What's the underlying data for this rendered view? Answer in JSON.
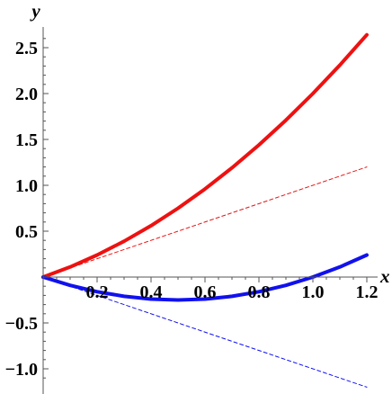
{
  "chart_data": {
    "type": "line",
    "xlabel": "x",
    "ylabel": "y",
    "xlim": [
      0,
      1.2
    ],
    "ylim": [
      -1.2,
      2.7
    ],
    "x_ticks": [
      "0.2",
      "0.4",
      "0.6",
      "0.8",
      "1.0",
      "1.2"
    ],
    "y_ticks": [
      "2.5",
      "2.0",
      "1.5",
      "1.0",
      "0.5",
      "−0.5",
      "−1.0"
    ],
    "x_tick_values": [
      0.2,
      0.4,
      0.6,
      0.8,
      1.0,
      1.2
    ],
    "y_tick_values": [
      2.5,
      2.0,
      1.5,
      1.0,
      0.5,
      -0.5,
      -1.0
    ],
    "grid": false,
    "series": [
      {
        "color": "#ee1111",
        "style": "solid",
        "x": [
          0,
          0.1,
          0.2,
          0.3,
          0.4,
          0.5,
          0.6,
          0.7,
          0.8,
          0.9,
          1.0,
          1.1,
          1.2
        ],
        "y": [
          0,
          0.11,
          0.24,
          0.39,
          0.56,
          0.75,
          0.96,
          1.19,
          1.44,
          1.71,
          2.0,
          2.31,
          2.64
        ]
      },
      {
        "color": "#ee1111",
        "style": "dashed",
        "x": [
          0,
          1.2
        ],
        "y": [
          0,
          1.2
        ]
      },
      {
        "color": "#1111ee",
        "style": "solid",
        "x": [
          0,
          0.1,
          0.2,
          0.3,
          0.4,
          0.5,
          0.6,
          0.7,
          0.8,
          0.9,
          1.0,
          1.1,
          1.2
        ],
        "y": [
          0,
          -0.09,
          -0.16,
          -0.21,
          -0.24,
          -0.25,
          -0.24,
          -0.21,
          -0.16,
          -0.09,
          0,
          0.11,
          0.24
        ]
      },
      {
        "color": "#1111ee",
        "style": "dashed",
        "x": [
          0,
          1.2
        ],
        "y": [
          0,
          -1.2
        ]
      }
    ]
  }
}
